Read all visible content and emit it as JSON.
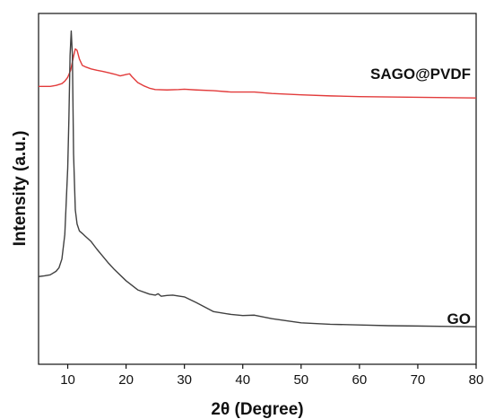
{
  "chart_data": {
    "type": "line",
    "xlabel": "2θ (Degree)",
    "ylabel": "Intensity (a.u.)",
    "xlim": [
      5,
      80
    ],
    "xticks": [
      10,
      20,
      30,
      40,
      50,
      60,
      70,
      80
    ],
    "y_ticks_shown": false,
    "grid": false,
    "legend": "none",
    "series": [
      {
        "name": "SAGO@PVDF",
        "color": "#e23b3b",
        "x": [
          5,
          6,
          7,
          8,
          9,
          9.5,
          10,
          10.5,
          11,
          11.3,
          11.6,
          12,
          12.5,
          13,
          14,
          15,
          16,
          17,
          18,
          19,
          20,
          20.6,
          21,
          22,
          23,
          24,
          25,
          27,
          29,
          30,
          32,
          35,
          38,
          40,
          42,
          45,
          50,
          55,
          60,
          65,
          70,
          75,
          80
        ],
        "values": [
          0.792,
          0.792,
          0.792,
          0.795,
          0.8,
          0.807,
          0.818,
          0.838,
          0.878,
          0.899,
          0.895,
          0.87,
          0.852,
          0.848,
          0.842,
          0.838,
          0.835,
          0.831,
          0.827,
          0.822,
          0.826,
          0.828,
          0.82,
          0.803,
          0.794,
          0.787,
          0.783,
          0.782,
          0.783,
          0.784,
          0.782,
          0.78,
          0.776,
          0.776,
          0.776,
          0.772,
          0.768,
          0.765,
          0.763,
          0.762,
          0.761,
          0.76,
          0.759
        ]
      },
      {
        "name": "GO",
        "color": "#404040",
        "x": [
          5,
          6,
          7,
          8,
          8.5,
          9,
          9.5,
          10,
          10.2,
          10.4,
          10.6,
          10.8,
          11,
          11.3,
          11.6,
          12,
          12.5,
          13,
          14,
          15,
          16,
          17,
          18,
          20,
          22,
          24,
          25,
          25.5,
          26,
          27,
          28,
          30,
          32,
          35,
          38,
          40,
          42,
          45,
          50,
          55,
          60,
          65,
          70,
          75,
          80
        ],
        "values": [
          0.25,
          0.252,
          0.255,
          0.265,
          0.275,
          0.3,
          0.37,
          0.56,
          0.7,
          0.88,
          0.95,
          0.88,
          0.6,
          0.44,
          0.4,
          0.38,
          0.373,
          0.365,
          0.35,
          0.328,
          0.308,
          0.288,
          0.27,
          0.238,
          0.212,
          0.2,
          0.197,
          0.201,
          0.194,
          0.196,
          0.197,
          0.192,
          0.176,
          0.15,
          0.142,
          0.139,
          0.14,
          0.13,
          0.118,
          0.114,
          0.112,
          0.11,
          0.109,
          0.108,
          0.107
        ]
      }
    ]
  }
}
